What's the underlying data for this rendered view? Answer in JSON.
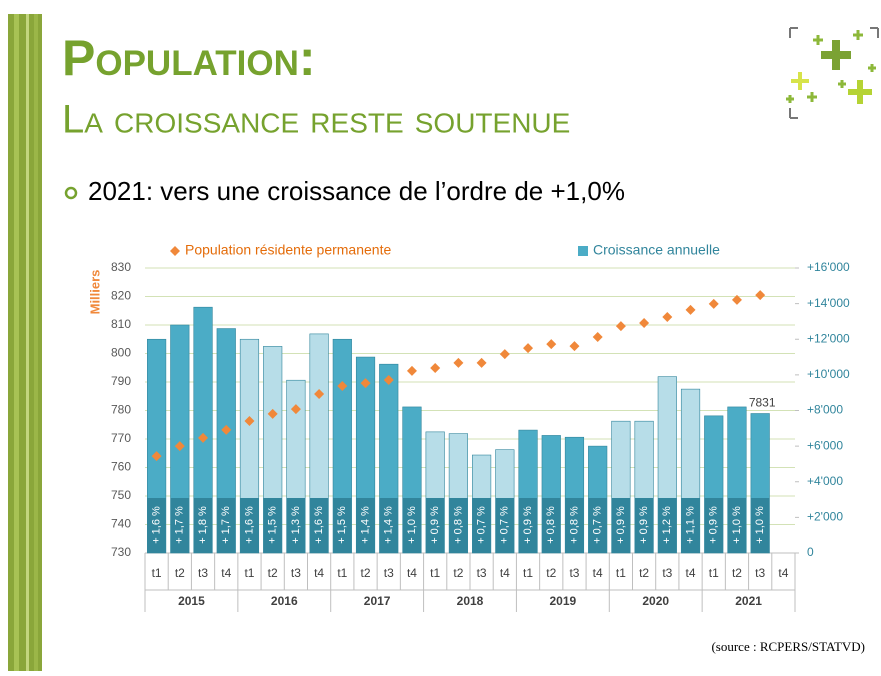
{
  "header": {
    "title": "Population:",
    "subtitle": "La croissance reste soutenue",
    "bullet": "2021: vers une croissance de l’ordre de +1,0%"
  },
  "chart_data": {
    "type": "bar",
    "categories": [
      "t1",
      "t2",
      "t3",
      "t4",
      "t1",
      "t2",
      "t3",
      "t4",
      "t1",
      "t2",
      "t3",
      "t4",
      "t1",
      "t2",
      "t3",
      "t4",
      "t1",
      "t2",
      "t3",
      "t4",
      "t1",
      "t2",
      "t3",
      "t4",
      "t1",
      "t2",
      "t3",
      "t4"
    ],
    "years": [
      "2015",
      "2016",
      "2017",
      "2018",
      "2019",
      "2020",
      "2021"
    ],
    "year_colors": [
      "#4bacc6",
      "#b7dde8",
      "#4bacc6",
      "#b7dde8",
      "#4bacc6",
      "#b7dde8",
      "#4bacc6"
    ],
    "ylabel": "Milliers",
    "ylim": [
      730,
      830
    ],
    "yticks": [
      730,
      740,
      750,
      760,
      770,
      780,
      790,
      800,
      810,
      820,
      830
    ],
    "y2lim": [
      0,
      16000
    ],
    "y2ticks": [
      0,
      {
        "value": 2000,
        "label": "+2'000"
      },
      {
        "value": 4000,
        "label": "+4'000"
      },
      {
        "value": 6000,
        "label": "+6'000"
      },
      {
        "value": 8000,
        "label": "+8'000"
      },
      {
        "value": 10000,
        "label": "+10'000"
      },
      {
        "value": 12000,
        "label": "+12'000"
      },
      {
        "value": 14000,
        "label": "+14'000"
      },
      {
        "value": 16000,
        "label": "+16'000"
      }
    ],
    "grid": true,
    "series": [
      {
        "name": "Croissance annuelle",
        "color": "#4bacc6",
        "axis": "y2",
        "values": [
          12000,
          12800,
          13800,
          12600,
          12000,
          11600,
          9700,
          12300,
          12000,
          11000,
          10600,
          8200,
          6800,
          6700,
          5500,
          5800,
          6900,
          6600,
          6500,
          6000,
          7400,
          7400,
          9900,
          9200,
          7700,
          8200,
          7831,
          null
        ],
        "value_labels": [
          null,
          null,
          null,
          null,
          null,
          null,
          null,
          null,
          null,
          null,
          null,
          null,
          null,
          null,
          null,
          null,
          null,
          null,
          null,
          null,
          null,
          null,
          null,
          null,
          null,
          null,
          "7831",
          null
        ],
        "rate_labels": [
          "+ 1,6 %",
          "+ 1,7 %",
          "+ 1,8 %",
          "+ 1,7 %",
          "+ 1,6 %",
          "+ 1,5 %",
          "+ 1,3 %",
          "+ 1,6 %",
          "+ 1,5 %",
          "+ 1,4 %",
          "+ 1,4 %",
          "+ 1,0 %",
          "+ 0,9 %",
          "+ 0,8 %",
          "+ 0,7 %",
          "+ 0,7 %",
          "+ 0,9 %",
          "+ 0,8 %",
          "+ 0,8 %",
          "+ 0,7 %",
          "+ 0,9 %",
          "+ 0,9 %",
          "+ 1,2 %",
          "+ 1,1 %",
          "+ 0,9 %",
          "+ 1,0 %",
          "+ 1,0 %",
          null
        ]
      },
      {
        "name": "Population résidente permanente",
        "color": "#f0883a",
        "axis": "y",
        "marker": "diamond",
        "values": [
          764,
          767.5,
          770.4,
          773.2,
          776.3,
          778.8,
          780.5,
          785.8,
          788.6,
          789.6,
          790.7,
          793.9,
          794.9,
          796.7,
          796.7,
          799.8,
          801.9,
          803.3,
          802.6,
          805.8,
          809.6,
          810.7,
          812.8,
          815.3,
          817.4,
          818.8,
          820.5,
          null
        ]
      }
    ]
  },
  "source": "(source : RCPERS/STATVD)"
}
